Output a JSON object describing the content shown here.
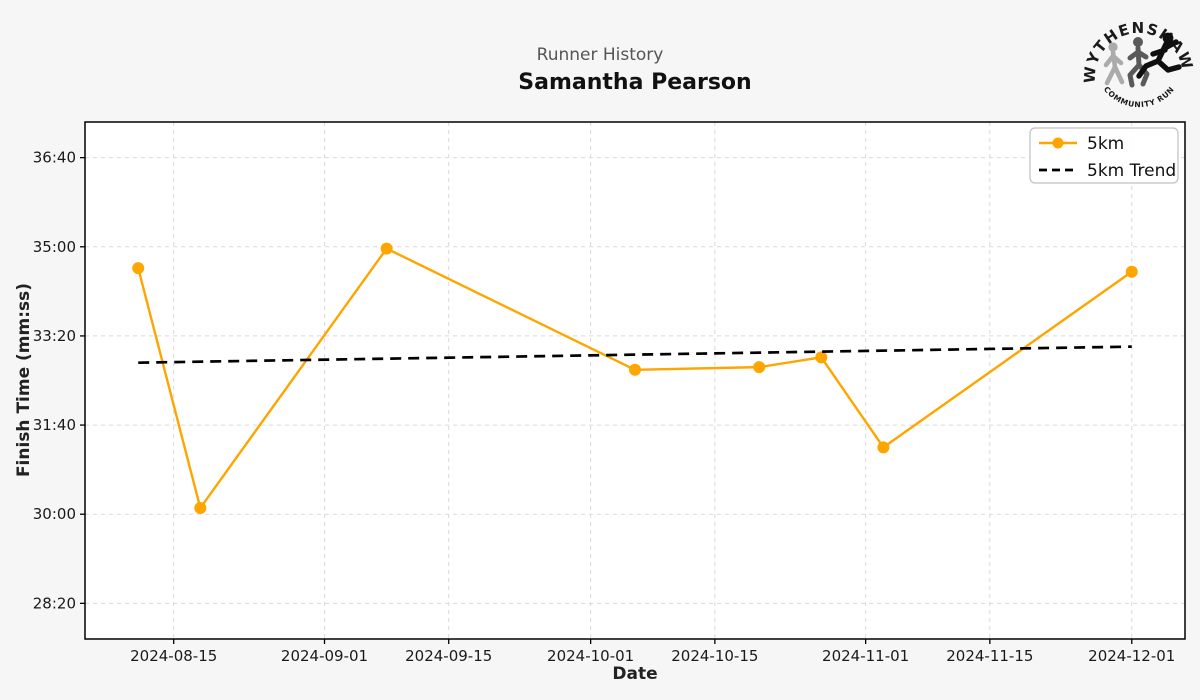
{
  "header": {
    "suptitle": "Runner History",
    "title": "Samantha Pearson"
  },
  "logo": {
    "top_text": "WYTHENSHAWE",
    "bottom_text": "COMMUNITY RUN"
  },
  "colors": {
    "figure_bg": "#f6f6f6",
    "plot_bg": "#ffffff",
    "grid": "#d9d9d9",
    "axis_border": "#000000",
    "series_5km": "#FFA500",
    "trend": "#000000",
    "suptitle_gray": "#555555",
    "legend_border": "#c0c0c0"
  },
  "chart_data": {
    "type": "line",
    "title": "Samantha Pearson",
    "suptitle": "Runner History",
    "xlabel": "Date",
    "ylabel": "Finish Time (mm:ss)",
    "x": [
      "2024-08-11",
      "2024-08-18",
      "2024-09-08",
      "2024-10-06",
      "2024-10-20",
      "2024-10-27",
      "2024-11-03",
      "2024-12-01"
    ],
    "series": [
      {
        "name": "5km",
        "color": "#FFA500",
        "marker": "circle",
        "values_seconds": [
          2076,
          1807,
          2098,
          1962,
          1965,
          1976,
          1875,
          2072
        ],
        "values_mmss": [
          "34:36",
          "30:07",
          "34:58",
          "32:42",
          "32:45",
          "32:56",
          "31:15",
          "34:32"
        ]
      },
      {
        "name": "5km Trend",
        "color": "#000000",
        "style": "dashed",
        "trend": {
          "start": {
            "x": "2024-08-11",
            "seconds": 1970,
            "mmss": "32:50"
          },
          "end": {
            "x": "2024-12-01",
            "seconds": 1988,
            "mmss": "33:08"
          }
        }
      }
    ],
    "y_ticks": [
      "36:40",
      "35:00",
      "33:20",
      "31:40",
      "30:00",
      "28:20"
    ],
    "y_tick_seconds": [
      2200,
      2100,
      2000,
      1900,
      1800,
      1700
    ],
    "x_ticks": [
      "2024-08-15",
      "2024-09-01",
      "2024-09-15",
      "2024-10-01",
      "2024-10-15",
      "2024-11-01",
      "2024-11-15",
      "2024-12-01"
    ],
    "ylim_seconds": [
      1660,
      2240
    ],
    "xlim": [
      "2024-08-05",
      "2024-12-07"
    ],
    "grid": true,
    "legend": {
      "position": "top-right",
      "entries": [
        "5km",
        "5km Trend"
      ]
    }
  }
}
